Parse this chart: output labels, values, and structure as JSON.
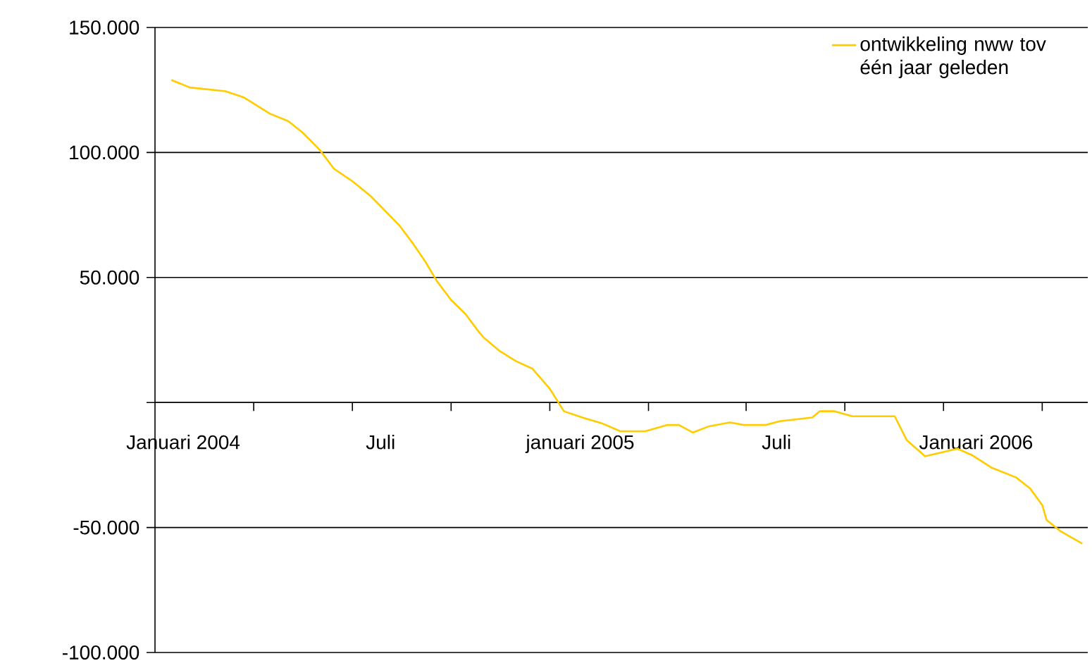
{
  "chart_data": {
    "type": "line",
    "x": [
      "2003-12-21",
      "2004-01-07",
      "2004-02-09",
      "2004-02-26",
      "2004-03-21",
      "2004-04-07",
      "2004-04-20",
      "2004-05-06",
      "2004-05-19",
      "2004-06-05",
      "2004-06-22",
      "2004-07-18",
      "2004-07-31",
      "2004-08-11",
      "2004-08-22",
      "2004-09-04",
      "2004-09-17",
      "2004-09-30",
      "2004-10-04",
      "2004-10-19",
      "2004-11-03",
      "2004-11-18",
      "2004-12-04",
      "2004-12-17",
      "2005-01-03",
      "2005-01-22",
      "2005-02-07",
      "2005-03-02",
      "2005-03-22",
      "2005-04-02",
      "2005-04-15",
      "2005-04-30",
      "2005-05-19",
      "2005-06-01",
      "2005-06-21",
      "2005-07-04",
      "2005-08-03",
      "2005-08-10",
      "2005-08-23",
      "2005-09-09",
      "2005-10-18",
      "2005-10-29",
      "2005-11-15",
      "2005-12-15",
      "2005-12-28",
      "2006-01-15",
      "2006-02-07",
      "2006-02-20",
      "2006-03-03",
      "2006-03-07",
      "2006-03-20",
      "2006-04-09"
    ],
    "series": [
      {
        "name": "ontwikkeling nww tov één jaar geleden",
        "color": "#ffcc00",
        "values": [
          129000,
          126000,
          124500,
          122000,
          115500,
          112500,
          108000,
          101000,
          93500,
          88500,
          82500,
          71000,
          63500,
          56500,
          48500,
          41000,
          35500,
          28000,
          26000,
          20500,
          16500,
          13500,
          5500,
          -3500,
          -6000,
          -8500,
          -11500,
          -11500,
          -9000,
          -9000,
          -12000,
          -9500,
          -8000,
          -9000,
          -9000,
          -7500,
          -6000,
          -3500,
          -3500,
          -5500,
          -5500,
          -15000,
          -21500,
          -18500,
          -21000,
          -26000,
          -30000,
          -34500,
          -41000,
          -47000,
          -51500,
          -56500
        ]
      }
    ],
    "xlim": [
      "2003-12-06",
      "2006-04-14"
    ],
    "xticks": [
      {
        "value": "2004-01-01",
        "label": "Januari 2004"
      },
      {
        "value": "2004-03-06",
        "label": null
      },
      {
        "value": "2004-06-05",
        "label": null
      },
      {
        "value": "2004-07-01",
        "label": "Juli"
      },
      {
        "value": "2004-09-04",
        "label": null
      },
      {
        "value": "2004-12-04",
        "label": null
      },
      {
        "value": "2005-01-01",
        "label": "januari 2005"
      },
      {
        "value": "2005-03-05",
        "label": null
      },
      {
        "value": "2005-06-03",
        "label": null
      },
      {
        "value": "2005-07-01",
        "label": "Juli"
      },
      {
        "value": "2005-09-02",
        "label": null
      },
      {
        "value": "2005-12-02",
        "label": null
      },
      {
        "value": "2006-01-01",
        "label": "Januari 2006"
      },
      {
        "value": "2006-03-03",
        "label": null
      }
    ],
    "ylim": [
      -100000,
      150000
    ],
    "yticks": [
      {
        "value": -100000,
        "label": "-100.000"
      },
      {
        "value": -50000,
        "label": "-50.000"
      },
      {
        "value": 0,
        "label": null
      },
      {
        "value": 50000,
        "label": "50.000"
      },
      {
        "value": 100000,
        "label": "100.000"
      },
      {
        "value": 150000,
        "label": "150.000"
      }
    ],
    "grid": "y",
    "legend": "top right",
    "marker": "none",
    "line_style": "solid"
  }
}
